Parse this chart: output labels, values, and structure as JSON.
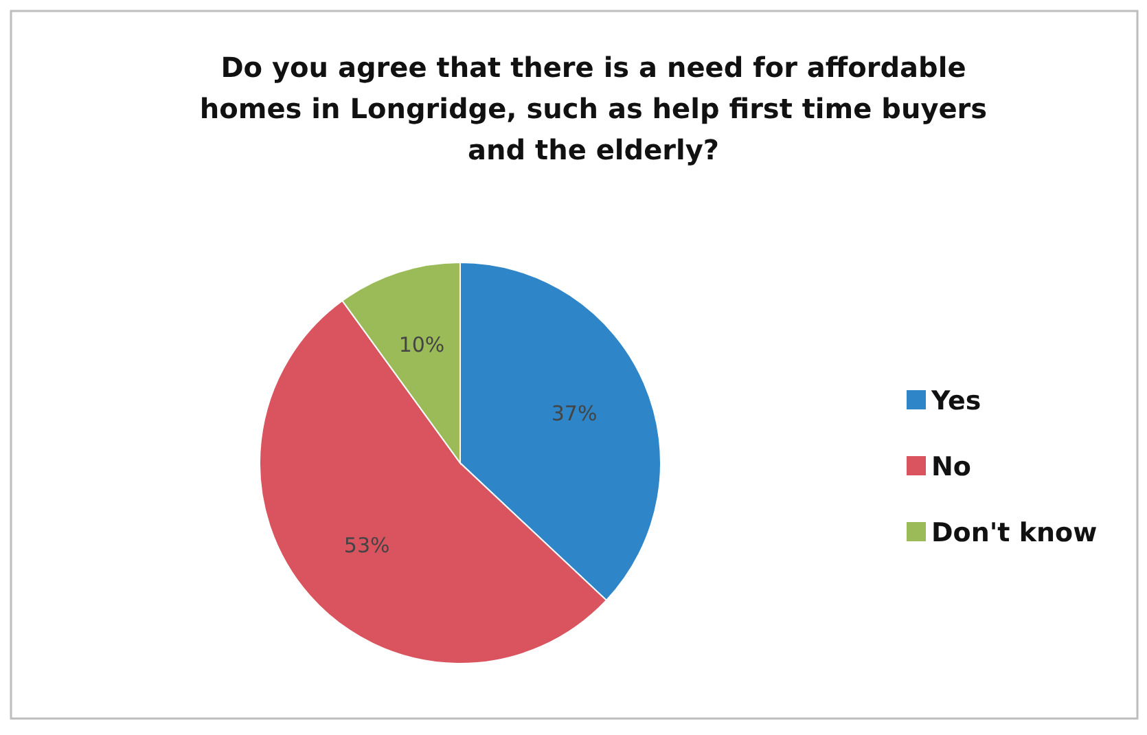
{
  "chart_data": {
    "type": "pie",
    "title": "Do you agree that there is a need for affordable homes in Longridge, such as help first time buyers and the elderly?",
    "categories": [
      "Yes",
      "No",
      "Don't know"
    ],
    "values": [
      37,
      53,
      10
    ],
    "colors": [
      "#2e86c8",
      "#d9545f",
      "#9bbb59"
    ],
    "value_labels": [
      "37%",
      "53%",
      "10%"
    ],
    "legend": "right"
  }
}
